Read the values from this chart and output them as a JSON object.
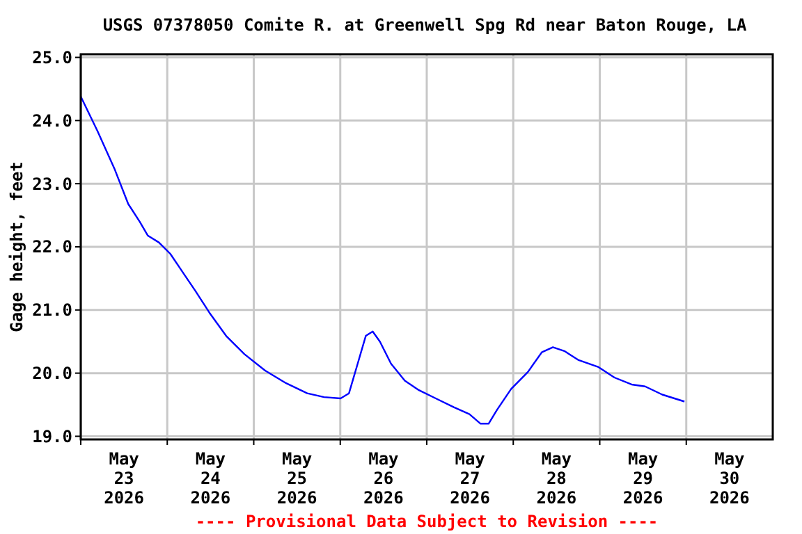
{
  "chart_data": {
    "type": "line",
    "title": "USGS 07378050 Comite R. at Greenwell Spg Rd near Baton Rouge, LA",
    "ylabel": "Gage height, feet",
    "annotations": [
      "---- Provisional Data Subject to Revision ----"
    ],
    "xlim": [
      "2026-05-23T00:00",
      "2026-05-31T00:00"
    ],
    "ylim": [
      18.95,
      25.05
    ],
    "yticks": [
      {
        "value": 19,
        "label": "19.0"
      },
      {
        "value": 20,
        "label": "20.0"
      },
      {
        "value": 21,
        "label": "21.0"
      },
      {
        "value": 22,
        "label": "22.0"
      },
      {
        "value": 23,
        "label": "23.0"
      },
      {
        "value": 24,
        "label": "24.0"
      },
      {
        "value": 25,
        "label": "25.0"
      }
    ],
    "xticks": [
      {
        "value": "2026-05-23T00:00",
        "label": null
      },
      {
        "value": "2026-05-23T12:00",
        "label": "May\n23\n2026"
      },
      {
        "value": "2026-05-24T00:00",
        "label": null
      },
      {
        "value": "2026-05-24T12:00",
        "label": "May\n24\n2026"
      },
      {
        "value": "2026-05-25T00:00",
        "label": null
      },
      {
        "value": "2026-05-25T12:00",
        "label": "May\n25\n2026"
      },
      {
        "value": "2026-05-26T00:00",
        "label": null
      },
      {
        "value": "2026-05-26T12:00",
        "label": "May\n26\n2026"
      },
      {
        "value": "2026-05-27T00:00",
        "label": null
      },
      {
        "value": "2026-05-27T12:00",
        "label": "May\n27\n2026"
      },
      {
        "value": "2026-05-28T00:00",
        "label": null
      },
      {
        "value": "2026-05-28T12:00",
        "label": "May\n28\n2026"
      },
      {
        "value": "2026-05-29T00:00",
        "label": null
      },
      {
        "value": "2026-05-29T12:00",
        "label": "May\n29\n2026"
      },
      {
        "value": "2026-05-30T00:00",
        "label": null
      },
      {
        "value": "2026-05-30T12:00",
        "label": "May\n30\n2026"
      }
    ],
    "grid": true,
    "x": [
      "2026-05-23T00:00",
      "2026-05-23T04:40",
      "2026-05-23T09:20",
      "2026-05-23T13:10",
      "2026-05-23T16:20",
      "2026-05-23T18:35",
      "2026-05-23T21:40",
      "2026-05-24T00:50",
      "2026-05-24T03:55",
      "2026-05-24T07:50",
      "2026-05-24T11:40",
      "2026-05-24T16:20",
      "2026-05-24T21:25",
      "2026-05-25T03:10",
      "2026-05-25T09:00",
      "2026-05-25T14:50",
      "2026-05-25T19:30",
      "2026-05-26T00:05",
      "2026-05-26T02:25",
      "2026-05-26T04:50",
      "2026-05-26T07:05",
      "2026-05-26T09:00",
      "2026-05-26T11:00",
      "2026-05-26T14:05",
      "2026-05-26T17:55",
      "2026-05-26T21:50",
      "2026-05-27T02:30",
      "2026-05-27T07:30",
      "2026-05-27T11:50",
      "2026-05-27T14:55",
      "2026-05-27T17:10",
      "2026-05-27T19:30",
      "2026-05-27T23:25",
      "2026-05-28T04:05",
      "2026-05-28T07:55",
      "2026-05-28T11:00",
      "2026-05-28T14:10",
      "2026-05-28T18:00",
      "2026-05-28T23:30",
      "2026-05-29T04:05",
      "2026-05-29T08:50",
      "2026-05-29T12:35",
      "2026-05-29T17:20",
      "2026-05-29T23:30"
    ],
    "series": [
      {
        "color": "#0000ff",
        "values": [
          24.38,
          23.83,
          23.24,
          22.68,
          22.4,
          22.18,
          22.07,
          21.89,
          21.63,
          21.3,
          20.96,
          20.59,
          20.3,
          20.04,
          19.84,
          19.68,
          19.62,
          19.6,
          19.68,
          20.15,
          20.59,
          20.66,
          20.5,
          20.15,
          19.88,
          19.73,
          19.6,
          19.46,
          19.35,
          19.2,
          19.2,
          19.42,
          19.75,
          20.02,
          20.33,
          20.41,
          20.35,
          20.21,
          20.1,
          19.93,
          19.82,
          19.79,
          19.66,
          19.55
        ]
      }
    ]
  }
}
